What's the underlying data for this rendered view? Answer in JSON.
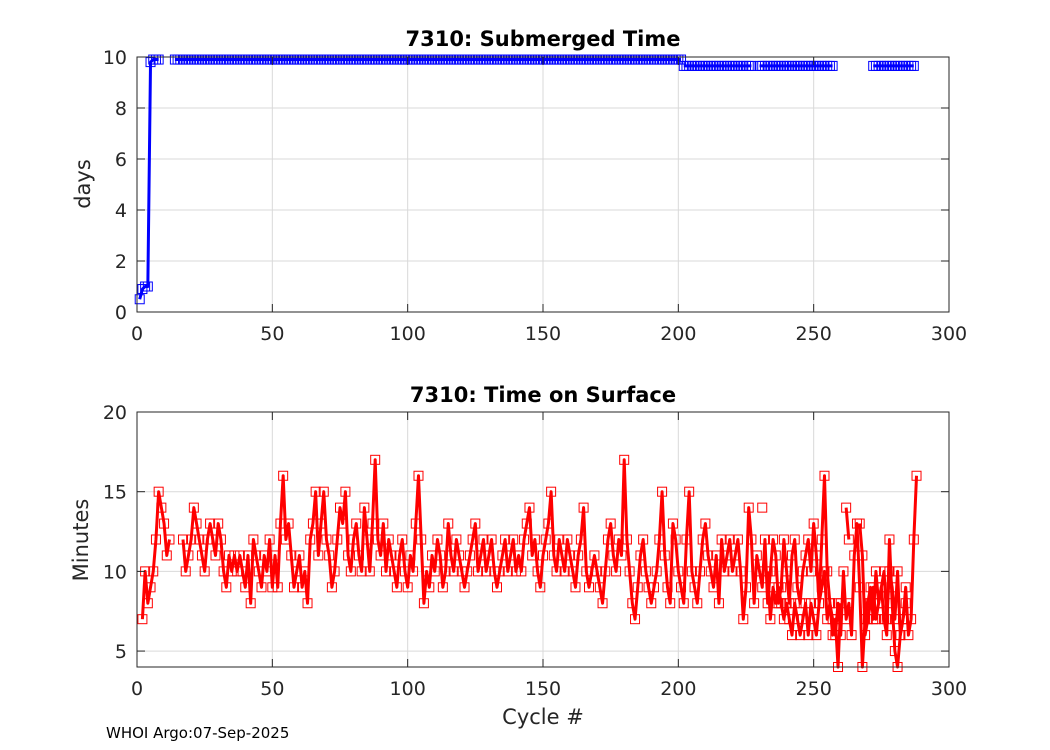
{
  "footer": "WHOI Argo:07-Sep-2025",
  "colors": {
    "submerged": "#0000ff",
    "surface": "#ff0000",
    "grid": "#d9d9d9",
    "axis": "#262626"
  },
  "chart_data": [
    {
      "type": "line",
      "title": "7310: Submerged Time",
      "xlabel": "",
      "ylabel": "days",
      "xlim": [
        0,
        300
      ],
      "ylim": [
        0,
        10
      ],
      "xticks": [
        0,
        50,
        100,
        150,
        200,
        250,
        300
      ],
      "yticks": [
        0,
        2,
        4,
        6,
        8,
        10
      ],
      "grid": true,
      "marker": "square",
      "segments": [
        {
          "x": [
            1,
            2,
            3,
            4,
            5,
            6,
            7,
            8
          ],
          "y": [
            0.5,
            0.9,
            1.0,
            1.0,
            9.8,
            9.9,
            9.9,
            9.9
          ]
        },
        {
          "x_start": 14,
          "x_end": 201,
          "y": 9.9
        },
        {
          "x_start": 202,
          "x_end": 227,
          "y": 9.65
        },
        {
          "x_start": 230,
          "x_end": 257,
          "y": 9.65
        },
        {
          "x_start": 272,
          "x_end": 287,
          "y": 9.65
        }
      ]
    },
    {
      "type": "line",
      "title": "7310: Time on Surface",
      "xlabel": "Cycle #",
      "ylabel": "Minutes",
      "xlim": [
        0,
        300
      ],
      "ylim": [
        4,
        20
      ],
      "xticks": [
        0,
        50,
        100,
        150,
        200,
        250,
        300
      ],
      "yticks": [
        5,
        10,
        15,
        20
      ],
      "grid": true,
      "marker": "square",
      "segments": [
        {
          "x_start": 2,
          "y": [
            7,
            10,
            8,
            9,
            10,
            12,
            15,
            14,
            13,
            11,
            12
          ]
        },
        {
          "x_start": 17,
          "y": [
            12,
            10,
            11,
            12,
            14,
            13,
            12,
            11,
            10,
            12,
            13,
            12,
            11,
            13,
            12,
            10,
            9,
            11,
            10,
            11,
            10,
            11,
            10,
            9,
            11,
            8,
            12,
            11,
            10,
            9,
            11,
            10,
            12,
            9,
            11,
            9,
            13,
            16,
            12,
            13,
            11,
            9,
            10,
            11,
            9,
            10,
            8,
            12,
            13,
            15,
            11,
            13,
            15,
            12,
            11,
            9,
            10,
            12,
            14,
            13,
            15,
            11,
            10,
            12,
            13,
            11,
            10,
            14,
            12,
            10,
            13,
            17,
            12,
            11,
            13,
            10,
            12,
            11,
            10,
            9,
            11,
            12,
            10,
            9,
            11,
            10,
            13,
            16,
            12,
            8,
            10,
            9,
            11,
            10,
            12,
            11,
            9,
            10,
            13,
            11,
            10,
            12,
            11,
            10,
            9,
            10,
            11,
            12,
            13,
            10,
            11,
            12,
            10,
            11,
            12,
            10,
            9,
            10,
            11,
            12,
            10,
            11,
            12,
            10,
            11,
            10,
            12,
            13,
            14,
            11,
            12,
            10,
            9,
            11,
            12,
            13,
            15,
            11,
            10,
            12,
            11,
            10,
            12,
            11,
            10,
            9,
            11,
            12,
            14,
            10,
            9,
            10,
            11,
            10,
            9,
            8,
            10,
            12,
            13,
            11,
            10,
            12,
            11,
            17,
            12,
            10,
            8,
            7,
            9,
            11,
            12,
            10,
            9,
            8,
            9,
            10,
            12,
            15,
            11,
            9,
            8,
            13,
            12,
            10,
            9,
            8,
            12,
            15,
            10,
            9,
            8,
            10,
            12,
            13,
            11,
            10,
            9,
            11,
            8,
            12,
            10,
            11,
            12,
            10,
            11,
            12,
            10,
            7,
            9,
            14,
            12,
            8,
            11,
            10,
            9,
            12,
            8,
            10,
            12,
            11,
            8,
            9,
            12,
            10,
            8,
            11,
            12,
            9,
            8,
            10,
            11,
            12,
            10,
            13,
            11,
            8,
            12,
            16,
            10,
            8,
            7,
            6,
            8,
            6,
            10,
            7,
            8,
            6,
            11,
            13,
            9,
            4,
            7,
            8,
            9,
            7,
            10,
            8,
            9,
            10,
            7,
            10,
            9,
            7,
            10,
            6,
            7,
            8
          ]
        },
        {
          "x_start": 231,
          "y": [
            14
          ]
        },
        {
          "x_start": 233,
          "y": [
            10,
            7,
            9,
            8,
            9,
            8,
            7,
            8,
            7,
            6,
            8,
            7,
            6,
            7,
            8,
            6,
            8,
            7,
            6,
            8,
            9,
            10,
            7,
            8,
            6,
            7,
            4,
            8
          ]
        },
        {
          "x_start": 262,
          "y": [
            14,
            12
          ]
        },
        {
          "x_start": 267,
          "y": [
            13,
            11,
            6,
            7,
            8,
            9,
            7,
            8,
            9,
            7,
            6,
            12,
            8,
            5,
            4,
            6,
            7,
            9,
            6,
            7,
            12,
            16
          ]
        }
      ]
    }
  ]
}
